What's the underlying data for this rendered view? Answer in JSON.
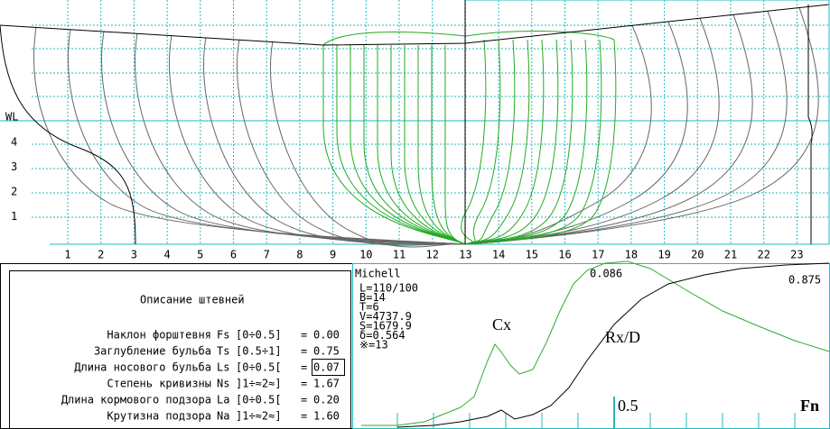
{
  "body_plan": {
    "waterline_label": "WL",
    "waterlines": [
      "4",
      "3",
      "2",
      "1"
    ],
    "stations": [
      "1",
      "2",
      "3",
      "4",
      "5",
      "6",
      "7",
      "8",
      "9",
      "10",
      "11",
      "12",
      "13",
      "14",
      "15",
      "16",
      "17",
      "18",
      "19",
      "20",
      "21",
      "22",
      "23"
    ]
  },
  "stem_panel": {
    "title": "Описание штевней",
    "rows": [
      {
        "label": "Наклон форштевня",
        "symbol": "Fs",
        "range": "[0÷0.5]",
        "equals": "=",
        "value": "0.00"
      },
      {
        "label": "Заглубление бульба",
        "symbol": "Ts",
        "range": "[0.5÷1]",
        "equals": "=",
        "value": "0.75"
      },
      {
        "label": "Длина носового бульба",
        "symbol": "Ls",
        "range": "[0÷0.5[",
        "equals": "=",
        "value": "0.07"
      },
      {
        "label": "Степень кривизны",
        "symbol": "Ns",
        "range": "]1÷≈2≈]",
        "equals": "=",
        "value": "1.67"
      },
      {
        "label": "Длина кормового подзора",
        "symbol": "La",
        "range": "[0÷0.5[",
        "equals": "=",
        "value": "0.20"
      },
      {
        "label": "Крутизна подзора",
        "symbol": "Na",
        "range": "]1÷≈2≈]",
        "equals": "=",
        "value": "1.60"
      }
    ]
  },
  "resistance_chart": {
    "program": "Michell",
    "parameters": [
      "L=110/100",
      "B=14",
      "T=6",
      "V=4737.9",
      "S=1679.9",
      "δ=0.564",
      "※=13"
    ],
    "cx_label": "Cx",
    "rx_label": "Rx/D",
    "cx_peak": "0.086",
    "rx_end": "0.875",
    "x_tick": "0.5",
    "x_label": "Fn"
  }
}
